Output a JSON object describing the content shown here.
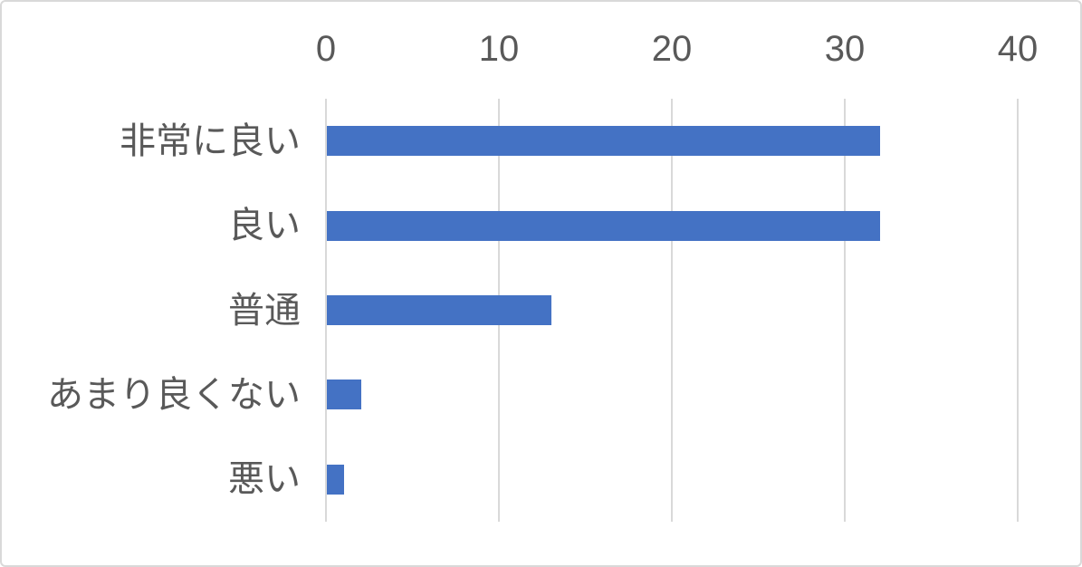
{
  "chart_data": {
    "type": "bar",
    "orientation": "horizontal",
    "title": "",
    "xlabel": "",
    "ylabel": "",
    "categories": [
      "非常に良い",
      "良い",
      "普通",
      "あまり良くない",
      "悪い"
    ],
    "values": [
      32,
      32,
      13,
      2,
      1
    ],
    "x_ticks": [
      0,
      10,
      20,
      30,
      40
    ],
    "xlim": [
      0,
      40
    ],
    "axis_labels_position": "top",
    "grid": "vertical",
    "legend": "none",
    "colors": {
      "bar": "#4472C4",
      "axis_text": "#595959",
      "gridline": "#D9D9D9",
      "border": "#D9D9D9",
      "background": "#FFFFFF"
    }
  }
}
